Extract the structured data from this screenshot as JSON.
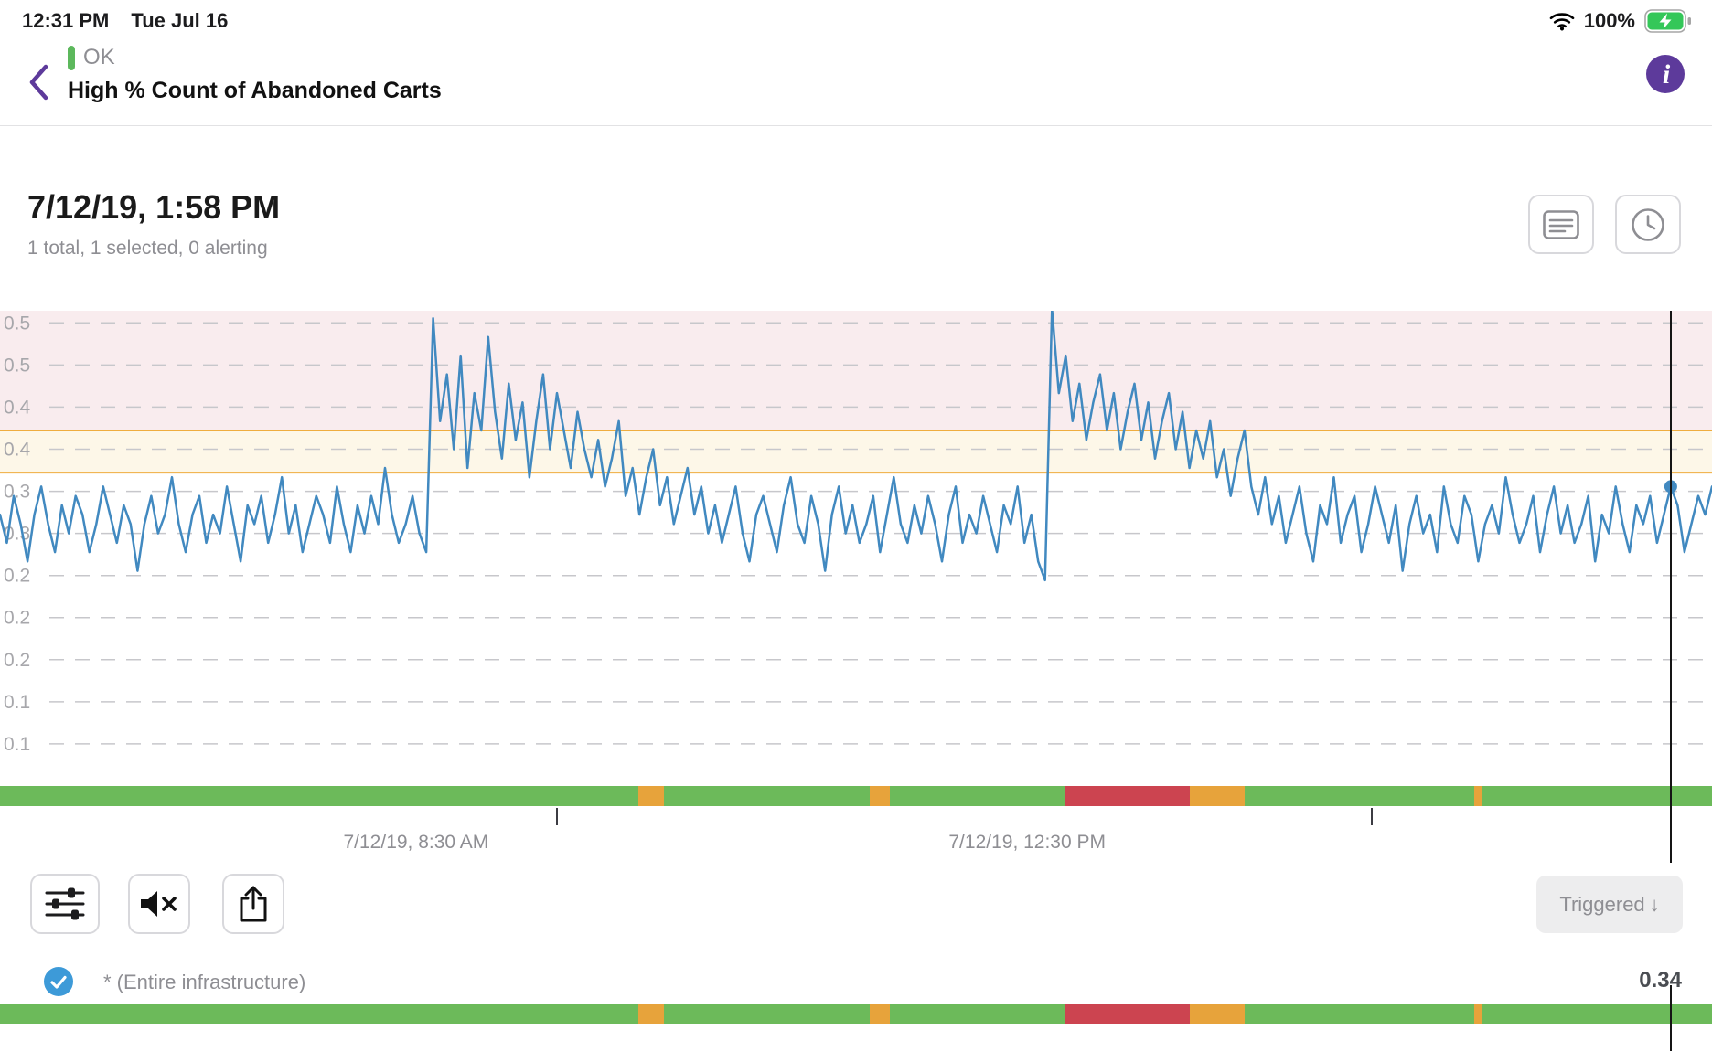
{
  "status_bar": {
    "time": "12:31 PM",
    "date": "Tue Jul 16",
    "battery_percent": "100%"
  },
  "header": {
    "status": "OK",
    "title": "High % Count of Abandoned Carts"
  },
  "summary": {
    "timestamp": "7/12/19, 1:58 PM",
    "subtitle": "1 total, 1 selected, 0 alerting"
  },
  "toolbar": {
    "sort_label": "Triggered",
    "sort_arrow": "↓"
  },
  "legend_row": {
    "label": "* (Entire infrastructure)",
    "value": "0.34"
  },
  "colors": {
    "accent_purple": "#5d3a9b",
    "line": "#4189c0",
    "grid": "#c7c7cb",
    "axis_text": "#a7a7ab",
    "threshold_line": "#efad3f",
    "alert_zone": "#f9ecee",
    "warn_zone": "#fdf7e8",
    "strip_green": "#6cba5a",
    "strip_orange": "#e7a33b",
    "strip_red": "#cc4450",
    "ok_green": "#5cb85c",
    "checkbox_blue": "#3d9ad8",
    "battery_green": "#34c759"
  },
  "chart_data": {
    "type": "line",
    "title": "",
    "x_axis": {
      "tick_labels": [
        "7/12/19, 8:30 AM",
        "7/12/19, 12:30 PM"
      ],
      "label_centers": [
        0.243,
        0.6
      ],
      "tick_positions": [
        0.325,
        0.801
      ]
    },
    "y_axis": {
      "top": 0.528,
      "bottom": 0.02,
      "gridline_values": [
        0.515,
        0.47,
        0.425,
        0.38,
        0.335,
        0.29,
        0.245,
        0.2,
        0.155,
        0.11,
        0.065
      ],
      "gridline_labels": [
        "0.5",
        "0.5",
        "0.4",
        "0.4",
        "0.3",
        "0.3",
        "0.2",
        "0.2",
        "0.2",
        "0.1",
        "0.1"
      ]
    },
    "thresholds": {
      "alert": 0.4,
      "warning": 0.355
    },
    "cursor": {
      "x_fraction": 0.976,
      "value": 0.34
    },
    "series": [
      {
        "name": "* (Entire infrastructure)",
        "values": [
          0.31,
          0.28,
          0.33,
          0.3,
          0.26,
          0.31,
          0.34,
          0.3,
          0.27,
          0.32,
          0.29,
          0.33,
          0.31,
          0.27,
          0.3,
          0.34,
          0.31,
          0.28,
          0.32,
          0.3,
          0.25,
          0.3,
          0.33,
          0.29,
          0.31,
          0.35,
          0.3,
          0.27,
          0.31,
          0.33,
          0.28,
          0.31,
          0.29,
          0.34,
          0.3,
          0.26,
          0.32,
          0.3,
          0.33,
          0.28,
          0.31,
          0.35,
          0.29,
          0.32,
          0.27,
          0.3,
          0.33,
          0.31,
          0.28,
          0.34,
          0.3,
          0.27,
          0.32,
          0.29,
          0.33,
          0.3,
          0.36,
          0.31,
          0.28,
          0.3,
          0.33,
          0.29,
          0.27,
          0.52,
          0.41,
          0.46,
          0.38,
          0.48,
          0.36,
          0.44,
          0.4,
          0.5,
          0.42,
          0.37,
          0.45,
          0.39,
          0.43,
          0.35,
          0.41,
          0.46,
          0.38,
          0.44,
          0.4,
          0.36,
          0.42,
          0.38,
          0.35,
          0.39,
          0.34,
          0.37,
          0.41,
          0.33,
          0.36,
          0.31,
          0.35,
          0.38,
          0.32,
          0.35,
          0.3,
          0.33,
          0.36,
          0.31,
          0.34,
          0.29,
          0.32,
          0.28,
          0.31,
          0.34,
          0.29,
          0.26,
          0.31,
          0.33,
          0.3,
          0.27,
          0.32,
          0.35,
          0.3,
          0.28,
          0.33,
          0.3,
          0.25,
          0.31,
          0.34,
          0.29,
          0.32,
          0.28,
          0.3,
          0.33,
          0.27,
          0.31,
          0.35,
          0.3,
          0.28,
          0.32,
          0.29,
          0.33,
          0.3,
          0.26,
          0.31,
          0.34,
          0.28,
          0.31,
          0.29,
          0.33,
          0.3,
          0.27,
          0.32,
          0.3,
          0.34,
          0.28,
          0.31,
          0.26,
          0.24,
          0.53,
          0.44,
          0.48,
          0.41,
          0.45,
          0.39,
          0.43,
          0.46,
          0.4,
          0.44,
          0.38,
          0.42,
          0.45,
          0.39,
          0.43,
          0.37,
          0.41,
          0.44,
          0.38,
          0.42,
          0.36,
          0.4,
          0.37,
          0.41,
          0.35,
          0.38,
          0.33,
          0.37,
          0.4,
          0.34,
          0.31,
          0.35,
          0.3,
          0.33,
          0.28,
          0.31,
          0.34,
          0.29,
          0.26,
          0.32,
          0.3,
          0.35,
          0.28,
          0.31,
          0.33,
          0.27,
          0.3,
          0.34,
          0.31,
          0.28,
          0.32,
          0.25,
          0.3,
          0.33,
          0.29,
          0.31,
          0.27,
          0.34,
          0.3,
          0.28,
          0.33,
          0.31,
          0.26,
          0.3,
          0.32,
          0.29,
          0.35,
          0.31,
          0.28,
          0.3,
          0.33,
          0.27,
          0.31,
          0.34,
          0.29,
          0.32,
          0.28,
          0.3,
          0.33,
          0.26,
          0.31,
          0.29,
          0.34,
          0.3,
          0.27,
          0.32,
          0.3,
          0.33,
          0.28,
          0.31,
          0.34,
          0.32,
          0.27,
          0.3,
          0.33,
          0.31,
          0.34
        ]
      }
    ],
    "status_strip": {
      "background": "green",
      "segments": [
        {
          "start": 0.373,
          "end": 0.388,
          "color": "orange"
        },
        {
          "start": 0.508,
          "end": 0.52,
          "color": "orange"
        },
        {
          "start": 0.622,
          "end": 0.695,
          "color": "red"
        },
        {
          "start": 0.695,
          "end": 0.727,
          "color": "orange"
        },
        {
          "start": 0.861,
          "end": 0.866,
          "color": "orange"
        }
      ]
    }
  }
}
